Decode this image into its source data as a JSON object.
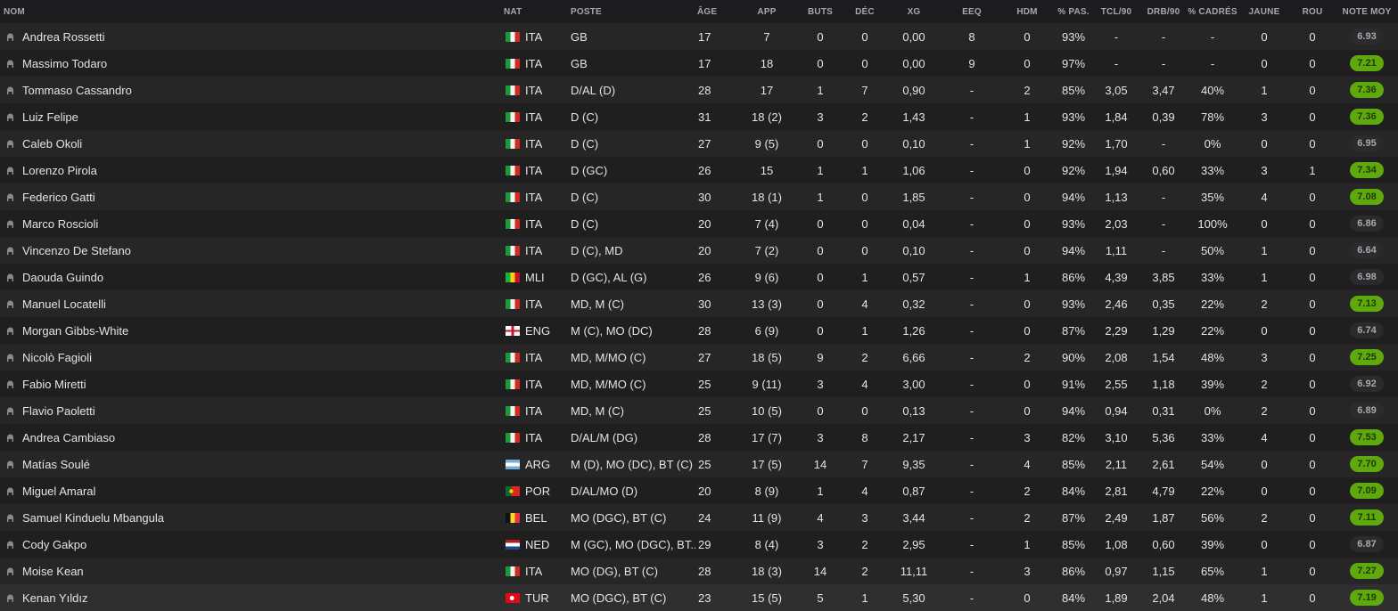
{
  "columns": {
    "name": "NOM",
    "nat": "NAT",
    "pos": "POSTE",
    "age": "ÂGE",
    "app": "APP",
    "buts": "BUTS",
    "dec": "DÉC",
    "xg": "XG",
    "eeq": "EEQ",
    "hdm": "HDM",
    "pas": "% PAS.",
    "tcl": "TCL/90",
    "drb": "DRB/90",
    "cad": "% CADRÉS",
    "jau": "JAUNE",
    "rou": "ROU",
    "note": "NOTE MOY"
  },
  "colors": {
    "rating_good": "#5fa80e",
    "rating_neutral": "#2b2b2d",
    "selected_row": "#2f2f30"
  },
  "selected_index": 21,
  "players": [
    {
      "name": "Andrea Rossetti",
      "nat": "ITA",
      "pos": "GB",
      "age": "17",
      "app": "7",
      "buts": "0",
      "dec": "0",
      "xg": "0,00",
      "eeq": "8",
      "hdm": "0",
      "pas": "93%",
      "tcl": "-",
      "drb": "-",
      "cad": "-",
      "jau": "0",
      "rou": "0",
      "note": "6.93"
    },
    {
      "name": "Massimo Todaro",
      "nat": "ITA",
      "pos": "GB",
      "age": "17",
      "app": "18",
      "buts": "0",
      "dec": "0",
      "xg": "0,00",
      "eeq": "9",
      "hdm": "0",
      "pas": "97%",
      "tcl": "-",
      "drb": "-",
      "cad": "-",
      "jau": "0",
      "rou": "0",
      "note": "7.21"
    },
    {
      "name": "Tommaso Cassandro",
      "nat": "ITA",
      "pos": "D/AL (D)",
      "age": "28",
      "app": "17",
      "buts": "1",
      "dec": "7",
      "xg": "0,90",
      "eeq": "-",
      "hdm": "2",
      "pas": "85%",
      "tcl": "3,05",
      "drb": "3,47",
      "cad": "40%",
      "jau": "1",
      "rou": "0",
      "note": "7.36"
    },
    {
      "name": "Luiz Felipe",
      "nat": "ITA",
      "pos": "D (C)",
      "age": "31",
      "app": "18 (2)",
      "buts": "3",
      "dec": "2",
      "xg": "1,43",
      "eeq": "-",
      "hdm": "1",
      "pas": "93%",
      "tcl": "1,84",
      "drb": "0,39",
      "cad": "78%",
      "jau": "3",
      "rou": "0",
      "note": "7.36"
    },
    {
      "name": "Caleb Okoli",
      "nat": "ITA",
      "pos": "D (C)",
      "age": "27",
      "app": "9 (5)",
      "buts": "0",
      "dec": "0",
      "xg": "0,10",
      "eeq": "-",
      "hdm": "1",
      "pas": "92%",
      "tcl": "1,70",
      "drb": "-",
      "cad": "0%",
      "jau": "0",
      "rou": "0",
      "note": "6.95"
    },
    {
      "name": "Lorenzo Pirola",
      "nat": "ITA",
      "pos": "D (GC)",
      "age": "26",
      "app": "15",
      "buts": "1",
      "dec": "1",
      "xg": "1,06",
      "eeq": "-",
      "hdm": "0",
      "pas": "92%",
      "tcl": "1,94",
      "drb": "0,60",
      "cad": "33%",
      "jau": "3",
      "rou": "1",
      "note": "7.34"
    },
    {
      "name": "Federico Gatti",
      "nat": "ITA",
      "pos": "D (C)",
      "age": "30",
      "app": "18 (1)",
      "buts": "1",
      "dec": "0",
      "xg": "1,85",
      "eeq": "-",
      "hdm": "0",
      "pas": "94%",
      "tcl": "1,13",
      "drb": "-",
      "cad": "35%",
      "jau": "4",
      "rou": "0",
      "note": "7.08"
    },
    {
      "name": "Marco Roscioli",
      "nat": "ITA",
      "pos": "D (C)",
      "age": "20",
      "app": "7 (4)",
      "buts": "0",
      "dec": "0",
      "xg": "0,04",
      "eeq": "-",
      "hdm": "0",
      "pas": "93%",
      "tcl": "2,03",
      "drb": "-",
      "cad": "100%",
      "jau": "0",
      "rou": "0",
      "note": "6.86"
    },
    {
      "name": "Vincenzo De Stefano",
      "nat": "ITA",
      "pos": "D (C), MD",
      "age": "20",
      "app": "7 (2)",
      "buts": "0",
      "dec": "0",
      "xg": "0,10",
      "eeq": "-",
      "hdm": "0",
      "pas": "94%",
      "tcl": "1,11",
      "drb": "-",
      "cad": "50%",
      "jau": "1",
      "rou": "0",
      "note": "6.64"
    },
    {
      "name": "Daouda Guindo",
      "nat": "MLI",
      "pos": "D (GC), AL (G)",
      "age": "26",
      "app": "9 (6)",
      "buts": "0",
      "dec": "1",
      "xg": "0,57",
      "eeq": "-",
      "hdm": "1",
      "pas": "86%",
      "tcl": "4,39",
      "drb": "3,85",
      "cad": "33%",
      "jau": "1",
      "rou": "0",
      "note": "6.98"
    },
    {
      "name": "Manuel Locatelli",
      "nat": "ITA",
      "pos": "MD, M (C)",
      "age": "30",
      "app": "13 (3)",
      "buts": "0",
      "dec": "4",
      "xg": "0,32",
      "eeq": "-",
      "hdm": "0",
      "pas": "93%",
      "tcl": "2,46",
      "drb": "0,35",
      "cad": "22%",
      "jau": "2",
      "rou": "0",
      "note": "7.13"
    },
    {
      "name": "Morgan Gibbs-White",
      "nat": "ENG",
      "pos": "M (C), MO (DC)",
      "age": "28",
      "app": "6 (9)",
      "buts": "0",
      "dec": "1",
      "xg": "1,26",
      "eeq": "-",
      "hdm": "0",
      "pas": "87%",
      "tcl": "2,29",
      "drb": "1,29",
      "cad": "22%",
      "jau": "0",
      "rou": "0",
      "note": "6.74"
    },
    {
      "name": "Nicolò Fagioli",
      "nat": "ITA",
      "pos": "MD, M/MO (C)",
      "age": "27",
      "app": "18 (5)",
      "buts": "9",
      "dec": "2",
      "xg": "6,66",
      "eeq": "-",
      "hdm": "2",
      "pas": "90%",
      "tcl": "2,08",
      "drb": "1,54",
      "cad": "48%",
      "jau": "3",
      "rou": "0",
      "note": "7.25"
    },
    {
      "name": "Fabio Miretti",
      "nat": "ITA",
      "pos": "MD, M/MO (C)",
      "age": "25",
      "app": "9 (11)",
      "buts": "3",
      "dec": "4",
      "xg": "3,00",
      "eeq": "-",
      "hdm": "0",
      "pas": "91%",
      "tcl": "2,55",
      "drb": "1,18",
      "cad": "39%",
      "jau": "2",
      "rou": "0",
      "note": "6.92"
    },
    {
      "name": "Flavio Paoletti",
      "nat": "ITA",
      "pos": "MD, M (C)",
      "age": "25",
      "app": "10 (5)",
      "buts": "0",
      "dec": "0",
      "xg": "0,13",
      "eeq": "-",
      "hdm": "0",
      "pas": "94%",
      "tcl": "0,94",
      "drb": "0,31",
      "cad": "0%",
      "jau": "2",
      "rou": "0",
      "note": "6.89"
    },
    {
      "name": "Andrea Cambiaso",
      "nat": "ITA",
      "pos": "D/AL/M (DG)",
      "age": "28",
      "app": "17 (7)",
      "buts": "3",
      "dec": "8",
      "xg": "2,17",
      "eeq": "-",
      "hdm": "3",
      "pas": "82%",
      "tcl": "3,10",
      "drb": "5,36",
      "cad": "33%",
      "jau": "4",
      "rou": "0",
      "note": "7.53"
    },
    {
      "name": "Matías Soulé",
      "nat": "ARG",
      "pos": "M (D), MO (DC), BT (C)",
      "age": "25",
      "app": "17 (5)",
      "buts": "14",
      "dec": "7",
      "xg": "9,35",
      "eeq": "-",
      "hdm": "4",
      "pas": "85%",
      "tcl": "2,11",
      "drb": "2,61",
      "cad": "54%",
      "jau": "0",
      "rou": "0",
      "note": "7.70"
    },
    {
      "name": "Miguel Amaral",
      "nat": "POR",
      "pos": "D/AL/MO (D)",
      "age": "20",
      "app": "8 (9)",
      "buts": "1",
      "dec": "4",
      "xg": "0,87",
      "eeq": "-",
      "hdm": "2",
      "pas": "84%",
      "tcl": "2,81",
      "drb": "4,79",
      "cad": "22%",
      "jau": "0",
      "rou": "0",
      "note": "7.09"
    },
    {
      "name": "Samuel Kinduelu Mbangula",
      "nat": "BEL",
      "pos": "MO (DGC), BT (C)",
      "age": "24",
      "app": "11 (9)",
      "buts": "4",
      "dec": "3",
      "xg": "3,44",
      "eeq": "-",
      "hdm": "2",
      "pas": "87%",
      "tcl": "2,49",
      "drb": "1,87",
      "cad": "56%",
      "jau": "2",
      "rou": "0",
      "note": "7.11"
    },
    {
      "name": "Cody Gakpo",
      "nat": "NED",
      "pos": "M (GC), MO (DGC), BT...",
      "age": "29",
      "app": "8 (4)",
      "buts": "3",
      "dec": "2",
      "xg": "2,95",
      "eeq": "-",
      "hdm": "1",
      "pas": "85%",
      "tcl": "1,08",
      "drb": "0,60",
      "cad": "39%",
      "jau": "0",
      "rou": "0",
      "note": "6.87"
    },
    {
      "name": "Moise Kean",
      "nat": "ITA",
      "pos": "MO (DG), BT (C)",
      "age": "28",
      "app": "18 (3)",
      "buts": "14",
      "dec": "2",
      "xg": "11,11",
      "eeq": "-",
      "hdm": "3",
      "pas": "86%",
      "tcl": "0,97",
      "drb": "1,15",
      "cad": "65%",
      "jau": "1",
      "rou": "0",
      "note": "7.27"
    },
    {
      "name": "Kenan Yıldız",
      "nat": "TUR",
      "pos": "MO (DGC), BT (C)",
      "age": "23",
      "app": "15 (5)",
      "buts": "5",
      "dec": "1",
      "xg": "5,30",
      "eeq": "-",
      "hdm": "0",
      "pas": "84%",
      "tcl": "1,89",
      "drb": "2,04",
      "cad": "48%",
      "jau": "1",
      "rou": "0",
      "note": "7.19"
    }
  ]
}
